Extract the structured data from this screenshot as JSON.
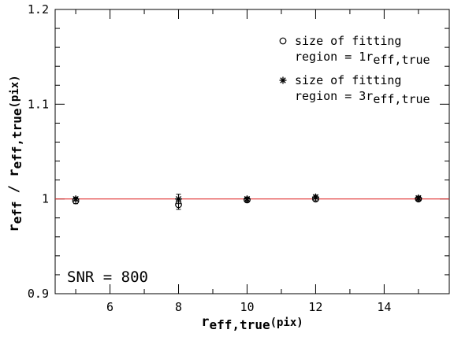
{
  "chart_data": {
    "type": "scatter",
    "title": "",
    "xlabel": {
      "main": "r",
      "sub": "eff,true",
      "suffix": "(pix)"
    },
    "ylabel": {
      "main1": "r",
      "sub1": "eff",
      "main2": " / r",
      "sub2": "eff,true",
      "suffix": "(pix)"
    },
    "xlim": [
      4.4,
      15.9
    ],
    "ylim": [
      0.9,
      1.2
    ],
    "x_ticks": [
      6,
      8,
      10,
      12,
      14
    ],
    "x_tick_labels": [
      "6",
      "8",
      "10",
      "12",
      "14"
    ],
    "y_ticks": [
      0.9,
      1.0,
      1.1,
      1.2
    ],
    "y_tick_labels": [
      "0.9",
      "1",
      "1.1",
      "1.2"
    ],
    "grid": false,
    "reference_line": {
      "y": 1.0,
      "color": "#e03030"
    },
    "legend_position": "top-right",
    "series": [
      {
        "name": "size of fitting region = 1r_eff,true",
        "legend_lines": [
          {
            "text": "size of fitting"
          },
          {
            "text": "region = 1r",
            "sub": "eff,true"
          }
        ],
        "marker": "circle",
        "x": [
          5,
          8,
          10,
          12,
          15
        ],
        "y": [
          0.998,
          0.994,
          0.999,
          1.0,
          1.0
        ],
        "yerr": [
          0.003,
          0.005,
          0.002,
          0.002,
          0.002
        ]
      },
      {
        "name": "size of fitting region = 3r_eff,true",
        "legend_lines": [
          {
            "text": "size of fitting"
          },
          {
            "text": "region = 3r",
            "sub": "eff,true"
          }
        ],
        "marker": "asterisk",
        "x": [
          5,
          8,
          10,
          12,
          15
        ],
        "y": [
          1.0,
          1.0,
          1.0,
          1.002,
          1.001
        ],
        "yerr": [
          0.002,
          0.005,
          0.002,
          0.002,
          0.002
        ]
      }
    ],
    "annotation": "SNR = 800"
  }
}
